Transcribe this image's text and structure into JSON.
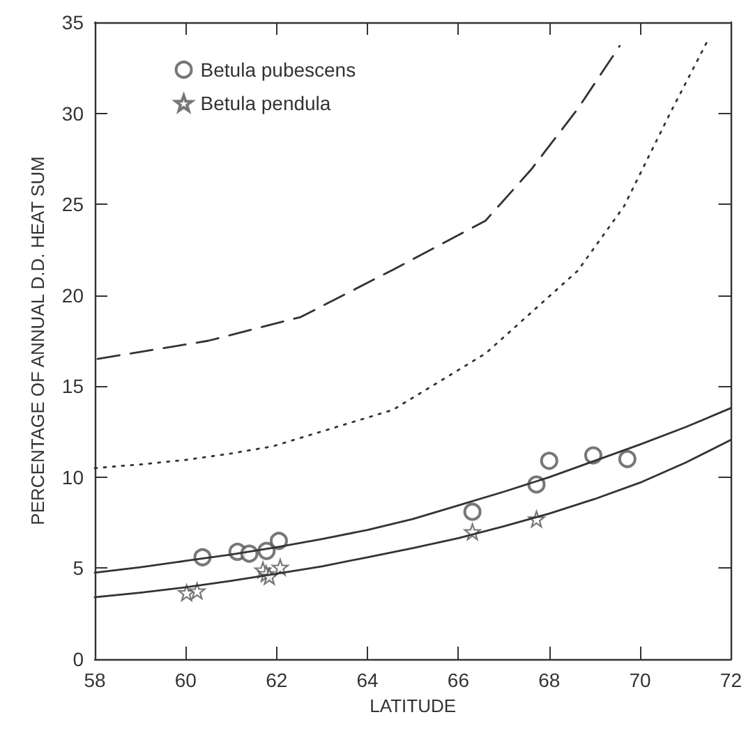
{
  "chart_data": {
    "type": "scatter",
    "xlabel": "LATITUDE",
    "ylabel": "PERCENTAGE OF ANNUAL D.D. HEAT SUM",
    "xlim": [
      58,
      72
    ],
    "xticks": [
      58,
      60,
      62,
      64,
      66,
      68,
      70,
      72
    ],
    "ylim": [
      0,
      35
    ],
    "yticks": [
      0,
      5,
      10,
      15,
      20,
      25,
      30,
      35
    ],
    "grid": false,
    "legend": "top left",
    "series": [
      {
        "name": "Betula pubescens",
        "marker": "circle",
        "color": "#555555",
        "x": [
          60.37,
          61.14,
          61.4,
          61.78,
          62.05,
          66.31,
          67.72,
          68.0,
          68.97,
          69.72
        ],
        "values": [
          5.6,
          5.9,
          5.8,
          5.95,
          6.5,
          8.1,
          9.6,
          10.9,
          11.2,
          11.0
        ]
      },
      {
        "name": "Betula pendula",
        "marker": "star",
        "color": "#555555",
        "x": [
          60.02,
          60.25,
          61.7,
          61.77,
          61.84,
          62.08,
          66.31,
          67.72
        ],
        "values": [
          3.65,
          3.75,
          4.9,
          4.7,
          4.55,
          5.05,
          7.0,
          7.7
        ]
      },
      {
        "type": "line",
        "line_style": "solid",
        "marker": "none",
        "color": "#333333",
        "x": [
          58,
          59,
          60,
          61,
          62,
          63,
          64,
          65,
          66,
          67,
          68,
          69,
          70,
          71,
          72
        ],
        "values": [
          4.75,
          5.05,
          5.4,
          5.75,
          6.15,
          6.6,
          7.1,
          7.7,
          8.45,
          9.2,
          10.0,
          10.9,
          11.8,
          12.75,
          13.8
        ]
      },
      {
        "type": "line",
        "line_style": "solid",
        "marker": "none",
        "color": "#333333",
        "x": [
          58,
          59,
          60,
          61,
          62,
          63,
          64,
          65,
          66,
          67,
          68,
          69,
          70,
          71,
          72
        ],
        "values": [
          3.4,
          3.65,
          3.95,
          4.3,
          4.7,
          5.1,
          5.6,
          6.1,
          6.65,
          7.3,
          8.0,
          8.8,
          9.7,
          10.8,
          12.05
        ]
      },
      {
        "type": "line",
        "line_style": "dashed",
        "marker": "none",
        "color": "#333333",
        "x": [
          58.06,
          60.5,
          62.53,
          64.56,
          66.6,
          67.6,
          68.63,
          69.55
        ],
        "values": [
          16.5,
          17.5,
          18.8,
          21.4,
          24.1,
          26.9,
          30.25,
          33.7
        ]
      },
      {
        "type": "line",
        "line_style": "dotted",
        "marker": "none",
        "color": "#333333",
        "x": [
          58,
          59,
          60,
          61,
          61.92,
          64.56,
          66.6,
          68.63,
          69.65,
          70.66,
          71.53
        ],
        "values": [
          10.5,
          10.7,
          10.95,
          11.3,
          11.7,
          13.7,
          16.8,
          21.35,
          24.9,
          30.0,
          34.2
        ]
      }
    ]
  }
}
